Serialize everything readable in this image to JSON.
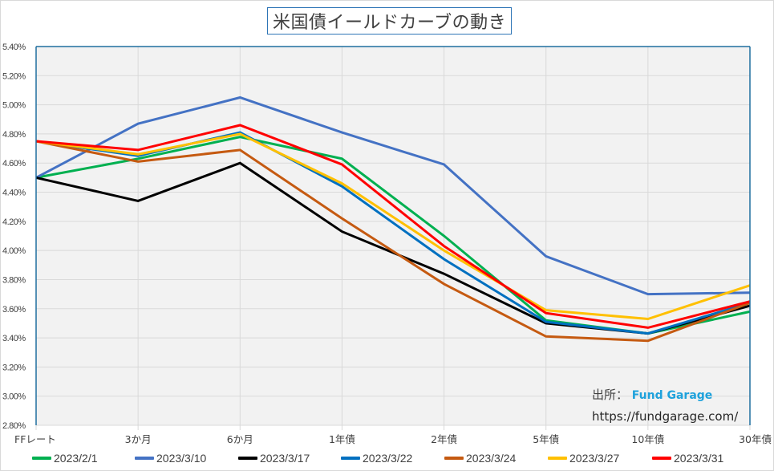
{
  "chart_data": {
    "type": "line",
    "title": "米国債イールドカーブの動き",
    "xlabel": "",
    "ylabel": "",
    "categories": [
      "FFレート",
      "3か月",
      "6か月",
      "1年債",
      "2年債",
      "5年債",
      "10年債",
      "30年債"
    ],
    "y_ticks": [
      "2.80%",
      "3.00%",
      "3.20%",
      "3.40%",
      "3.60%",
      "3.80%",
      "4.00%",
      "4.20%",
      "4.40%",
      "4.60%",
      "4.80%",
      "5.00%",
      "5.20%",
      "5.40%"
    ],
    "ylim": [
      2.8,
      5.4
    ],
    "y_step": 0.2,
    "grid": true,
    "legend_position": "bottom",
    "series": [
      {
        "name": "2023/2/1",
        "color": "#00b050",
        "values": [
          4.5,
          4.63,
          4.78,
          4.63,
          4.1,
          3.52,
          3.43,
          3.58
        ]
      },
      {
        "name": "2023/3/10",
        "color": "#4472c4",
        "values": [
          4.5,
          4.87,
          5.05,
          4.81,
          4.59,
          3.96,
          3.7,
          3.71
        ]
      },
      {
        "name": "2023/3/17",
        "color": "#000000",
        "values": [
          4.5,
          4.34,
          4.6,
          4.13,
          3.84,
          3.5,
          3.43,
          3.62
        ]
      },
      {
        "name": "2023/3/22",
        "color": "#0070c0",
        "values": [
          4.75,
          4.65,
          4.81,
          4.44,
          3.94,
          3.51,
          3.43,
          3.64
        ]
      },
      {
        "name": "2023/3/24",
        "color": "#c55a11",
        "values": [
          4.75,
          4.61,
          4.69,
          4.22,
          3.77,
          3.41,
          3.38,
          3.64
        ]
      },
      {
        "name": "2023/3/27",
        "color": "#ffc000",
        "values": [
          4.75,
          4.66,
          4.8,
          4.46,
          4.0,
          3.59,
          3.53,
          3.76
        ]
      },
      {
        "name": "2023/3/31",
        "color": "#ff0000",
        "values": [
          4.75,
          4.69,
          4.86,
          4.59,
          4.03,
          3.57,
          3.47,
          3.65
        ]
      }
    ],
    "annotations": {
      "source_label": "出所：",
      "source_brand": "Fund Garage",
      "source_brand_color": "#1fa2dc",
      "url": "https://fundgarage.com/"
    }
  },
  "colors": {
    "plot_background": "#f2f2f2",
    "gridline": "#d9d9d9",
    "axis_line": "#1f6f9f",
    "title_border": "#2e75b6",
    "text": "#404040"
  }
}
